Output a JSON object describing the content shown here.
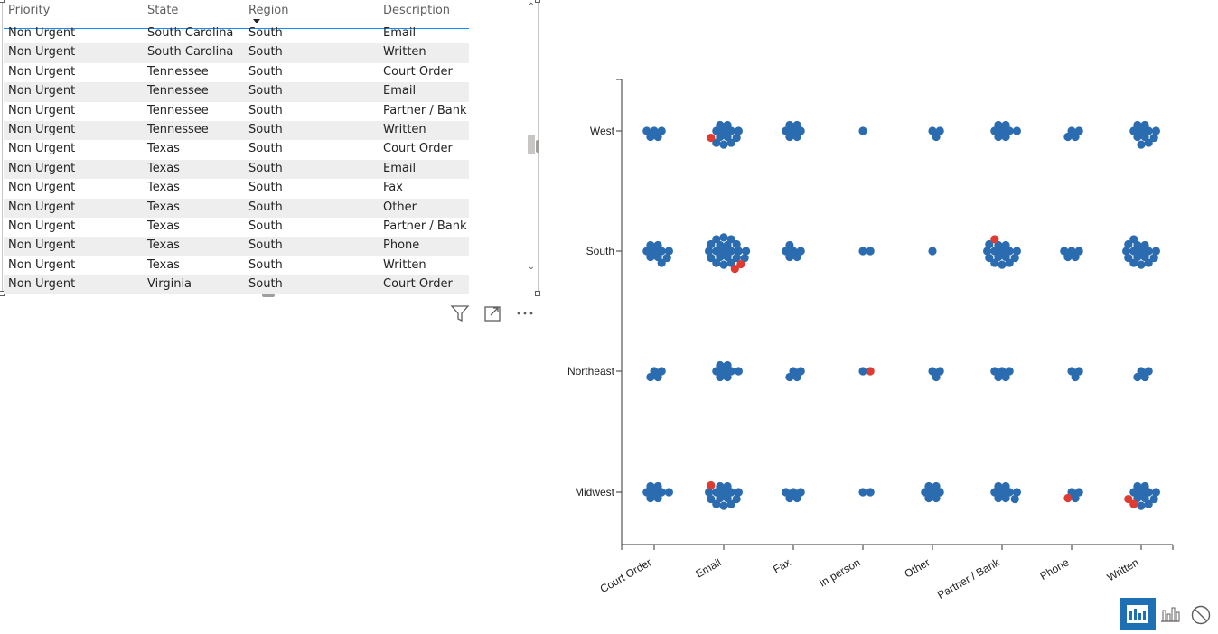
{
  "table": {
    "headers": [
      "Priority",
      "State",
      "Region",
      "Description"
    ],
    "rows": [
      [
        "Non Urgent",
        "South Carolina",
        "South",
        "Email"
      ],
      [
        "Non Urgent",
        "South Carolina",
        "South",
        "Written"
      ],
      [
        "Non Urgent",
        "Tennessee",
        "South",
        "Court Order"
      ],
      [
        "Non Urgent",
        "Tennessee",
        "South",
        "Email"
      ],
      [
        "Non Urgent",
        "Tennessee",
        "South",
        "Partner / Bank"
      ],
      [
        "Non Urgent",
        "Tennessee",
        "South",
        "Written"
      ],
      [
        "Non Urgent",
        "Texas",
        "South",
        "Court Order"
      ],
      [
        "Non Urgent",
        "Texas",
        "South",
        "Email"
      ],
      [
        "Non Urgent",
        "Texas",
        "South",
        "Fax"
      ],
      [
        "Non Urgent",
        "Texas",
        "South",
        "Other"
      ],
      [
        "Non Urgent",
        "Texas",
        "South",
        "Partner / Bank"
      ],
      [
        "Non Urgent",
        "Texas",
        "South",
        "Phone"
      ],
      [
        "Non Urgent",
        "Texas",
        "South",
        "Written"
      ],
      [
        "Non Urgent",
        "Virginia",
        "South",
        "Court Order"
      ]
    ]
  },
  "visual_header_icons": [
    "filter-icon",
    "focus-mode-icon",
    "more-options-icon"
  ],
  "toolbar_icons": [
    "chart-view-icon",
    "bar-chart-icon",
    "block-icon"
  ],
  "colors": {
    "dot": "#2b6cb0",
    "highlight": "#e03b31",
    "accent": "#1f6fb5"
  },
  "chart_data": {
    "type": "scatter",
    "subtype": "beeswarm",
    "categories": [
      "Court Order",
      "Email",
      "Fax",
      "In person",
      "Other",
      "Partner / Bank",
      "Phone",
      "Written"
    ],
    "x_tick_labels": [
      "Court Order",
      "Email",
      "Fax",
      "In person",
      "Other",
      "Partner / Bank",
      "Phone",
      "Written"
    ],
    "regions": [
      "West",
      "South",
      "Northeast",
      "Midwest"
    ],
    "series": [
      {
        "region": "West",
        "counts": [
          5,
          13,
          7,
          1,
          3,
          8,
          4,
          11
        ],
        "highlighted": [
          0,
          1,
          0,
          0,
          0,
          0,
          0,
          0
        ]
      },
      {
        "region": "South",
        "counts": [
          10,
          23,
          6,
          2,
          1,
          16,
          5,
          16
        ],
        "highlighted": [
          0,
          2,
          0,
          0,
          0,
          1,
          0,
          0
        ]
      },
      {
        "region": "Northeast",
        "counts": [
          4,
          8,
          4,
          2,
          3,
          5,
          3,
          4
        ],
        "highlighted": [
          0,
          0,
          0,
          1,
          0,
          0,
          0,
          0
        ]
      },
      {
        "region": "Midwest",
        "counts": [
          8,
          15,
          5,
          2,
          7,
          9,
          4,
          13
        ],
        "highlighted": [
          0,
          1,
          0,
          0,
          0,
          0,
          1,
          2
        ]
      }
    ],
    "grid": false,
    "legend": "none"
  }
}
